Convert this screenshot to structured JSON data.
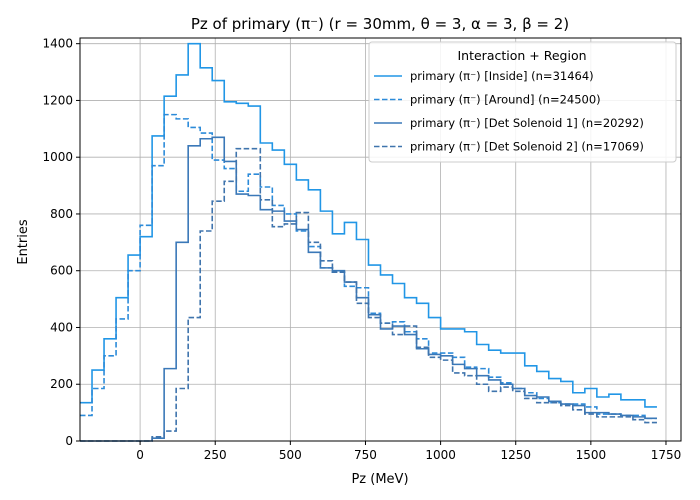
{
  "chart_data": {
    "type": "histogram-step",
    "title": "Pz of primary (π⁻) (r = 30mm, θ = 3, α = 3, β = 2)",
    "xlabel": "Pz (MeV)",
    "ylabel": "Entries",
    "xlim": [
      -200,
      1800
    ],
    "ylim": [
      0,
      1420
    ],
    "xticks": [
      0,
      250,
      500,
      750,
      1000,
      1250,
      1500,
      1750
    ],
    "yticks": [
      0,
      200,
      400,
      600,
      800,
      1000,
      1200,
      1400
    ],
    "grid": true,
    "legend_placement": "upper right",
    "legend_title": "Interaction + Region",
    "bin_edges_start": -200,
    "bin_width": 40,
    "series": [
      {
        "name": "primary (π⁻) [Inside] (n=31464)",
        "color": "#2196e6",
        "dash": "solid",
        "values": [
          135,
          250,
          360,
          505,
          655,
          720,
          1075,
          1215,
          1290,
          1400,
          1315,
          1270,
          1195,
          1190,
          1180,
          1050,
          1025,
          975,
          920,
          885,
          810,
          730,
          770,
          710,
          620,
          585,
          555,
          505,
          485,
          435,
          395,
          395,
          385,
          340,
          320,
          310,
          310,
          265,
          245,
          220,
          210,
          170,
          185,
          155,
          165,
          145,
          145,
          120
        ]
      },
      {
        "name": "primary (π⁻) [Around] (n=24500)",
        "color": "#2c8bd9",
        "dash": "dashed",
        "values": [
          90,
          185,
          300,
          430,
          600,
          760,
          970,
          1150,
          1135,
          1105,
          1085,
          990,
          960,
          880,
          940,
          895,
          830,
          800,
          740,
          685,
          610,
          595,
          545,
          540,
          450,
          415,
          420,
          385,
          360,
          310,
          310,
          295,
          260,
          255,
          225,
          205,
          185,
          170,
          150,
          135,
          130,
          130,
          120,
          95,
          95,
          90,
          90,
          80
        ]
      },
      {
        "name": "primary (π⁻) [Det Solenoid 1] (n=20292)",
        "color": "#3a78b8",
        "dash": "solid",
        "values": [
          0,
          0,
          0,
          0,
          0,
          0,
          10,
          255,
          700,
          1040,
          1065,
          1070,
          985,
          870,
          865,
          815,
          810,
          775,
          745,
          665,
          610,
          600,
          560,
          505,
          445,
          395,
          405,
          375,
          325,
          305,
          300,
          270,
          255,
          230,
          215,
          200,
          185,
          160,
          155,
          140,
          130,
          125,
          100,
          100,
          95,
          90,
          85,
          80
        ]
      },
      {
        "name": "primary (π⁻) [Det Solenoid 2] (n=17069)",
        "color": "#3f74ad",
        "dash": "dashed",
        "values": [
          0,
          0,
          0,
          0,
          0,
          0,
          15,
          35,
          185,
          435,
          740,
          845,
          915,
          1030,
          1030,
          850,
          755,
          765,
          805,
          700,
          635,
          595,
          560,
          485,
          435,
          415,
          375,
          405,
          330,
          295,
          285,
          240,
          230,
          200,
          175,
          190,
          175,
          150,
          135,
          135,
          125,
          110,
          95,
          85,
          85,
          85,
          75,
          65
        ]
      }
    ]
  }
}
